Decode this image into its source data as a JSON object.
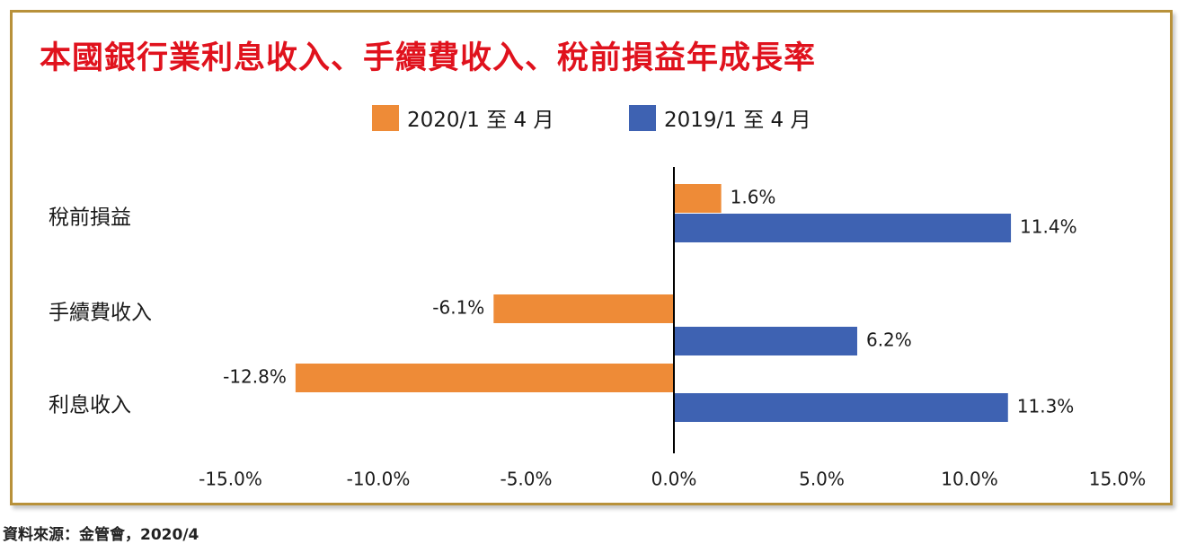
{
  "chart_data": {
    "type": "bar",
    "orientation": "horizontal",
    "title": "本國銀行業利息收入、手續費收入、稅前損益年成長率",
    "categories": [
      "稅前損益",
      "手續費收入",
      "利息收入"
    ],
    "series": [
      {
        "name": "2020/1 至 4 月",
        "color": "#ee8b37",
        "values": [
          1.6,
          -6.1,
          -12.8
        ],
        "labels": [
          "1.6%",
          "-6.1%",
          "-12.8%"
        ]
      },
      {
        "name": "2019/1 至 4 月",
        "color": "#3e62b2",
        "values": [
          11.4,
          6.2,
          11.3
        ],
        "labels": [
          "11.4%",
          "6.2%",
          "11.3%"
        ]
      }
    ],
    "xlim": [
      -15,
      15
    ],
    "ticks": [
      -15,
      -10,
      -5,
      0,
      5,
      10,
      15
    ],
    "tick_labels": [
      "-15.0%",
      "-10.0%",
      "-5.0%",
      "0.0%",
      "5.0%",
      "10.0%",
      "15.0%"
    ],
    "xlabel": "",
    "ylabel": "",
    "grid": false,
    "legend_position": "top-center"
  },
  "source": "資料來源：金管會，2020/4"
}
